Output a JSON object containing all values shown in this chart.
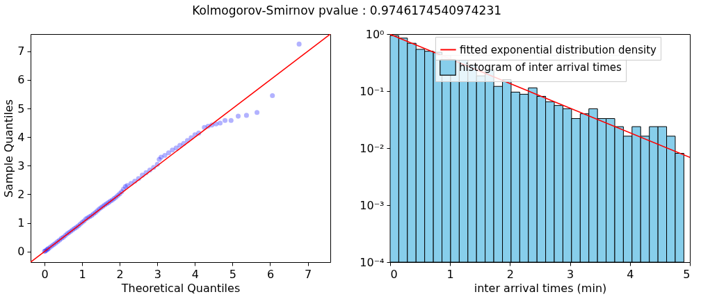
{
  "chart_data": [
    {
      "type": "scatter",
      "title": "Kolmogorov-Smirnov pvalue : 0.9746174540974231",
      "xlabel": "Theoretical Quantiles",
      "ylabel": "Sample Quantiles",
      "xlim": [
        -0.37,
        7.6
      ],
      "ylim": [
        -0.37,
        7.6
      ],
      "xticks": [
        0,
        1,
        2,
        3,
        4,
        5,
        6,
        7
      ],
      "yticks": [
        0,
        1,
        2,
        3,
        4,
        5,
        6,
        7
      ],
      "grid": false,
      "legend": false,
      "marker": "circle",
      "series": [
        {
          "color": "#0000ff",
          "x": [
            0,
            0.02,
            0.05,
            0.08,
            0.1,
            0.15,
            0.2,
            0.25,
            0.3,
            0.35,
            0.4,
            0.45,
            0.5,
            0.55,
            0.6,
            0.65,
            0.7,
            0.75,
            0.8,
            0.85,
            0.9,
            0.95,
            1.0,
            1.05,
            1.1,
            1.15,
            1.2,
            1.25,
            1.3,
            1.35,
            1.4,
            1.45,
            1.5,
            1.55,
            1.6,
            1.65,
            1.7,
            1.75,
            1.8,
            1.85,
            1.9,
            1.95,
            2.0,
            2.05,
            2.1,
            2.15,
            2.2,
            2.3,
            2.4,
            2.5,
            2.6,
            2.7,
            2.8,
            2.9,
            3.0,
            3.05,
            3.1,
            3.2,
            3.3,
            3.4,
            3.5,
            3.6,
            3.7,
            3.8,
            3.9,
            4.0,
            4.1,
            4.25,
            4.35,
            4.45,
            4.56,
            4.67,
            4.8,
            4.96,
            5.15,
            5.37,
            5.65,
            6.06,
            6.77
          ],
          "values": [
            0.01,
            0.02,
            0.05,
            0.08,
            0.1,
            0.15,
            0.2,
            0.25,
            0.3,
            0.35,
            0.4,
            0.46,
            0.5,
            0.56,
            0.62,
            0.66,
            0.71,
            0.76,
            0.81,
            0.85,
            0.9,
            0.96,
            1.02,
            1.07,
            1.14,
            1.18,
            1.22,
            1.26,
            1.31,
            1.36,
            1.42,
            1.48,
            1.53,
            1.58,
            1.63,
            1.67,
            1.71,
            1.76,
            1.8,
            1.85,
            1.9,
            1.96,
            2.02,
            2.09,
            2.18,
            2.27,
            2.31,
            2.38,
            2.46,
            2.55,
            2.67,
            2.76,
            2.85,
            2.94,
            3.05,
            3.22,
            3.3,
            3.36,
            3.45,
            3.55,
            3.62,
            3.71,
            3.78,
            3.88,
            3.98,
            4.08,
            4.14,
            4.34,
            4.38,
            4.42,
            4.46,
            4.49,
            4.58,
            4.58,
            4.73,
            4.76,
            4.86,
            5.45,
            7.25
          ]
        },
        {
          "type": "line",
          "color": "#ff0000",
          "marker": "none",
          "x": [
            -0.37,
            7.6
          ],
          "values": [
            -0.37,
            7.6
          ]
        }
      ]
    },
    {
      "type": "histogram",
      "xlabel": "inter arrival times (min)",
      "xlim": [
        0,
        5
      ],
      "ylim": [
        0.0001,
        1
      ],
      "xticks": [
        0,
        1,
        2,
        3,
        4,
        5
      ],
      "yticks": [
        {
          "value": 0.0001,
          "label": "10⁻⁴"
        },
        {
          "value": 0.001,
          "label": "10⁻³"
        },
        {
          "value": 0.01,
          "label": "10⁻²"
        },
        {
          "value": 0.1,
          "label": "10⁻¹"
        },
        {
          "value": 1,
          "label": "10⁰"
        }
      ],
      "log": "y",
      "grid": false,
      "legend": "top right",
      "series": [
        {
          "type": "line",
          "name": "fitted exponential distribution density",
          "color": "#ff0000",
          "x": [
            0,
            5
          ],
          "values": [
            0.99,
            0.0069
          ]
        },
        {
          "name": "histogram of inter arrival times",
          "color": "#87ceeb",
          "bins": [
            0,
            0.144,
            0.288,
            0.432,
            0.576,
            0.721,
            0.865,
            1.009,
            1.153,
            1.297,
            1.441,
            1.585,
            1.729,
            1.874,
            2.018,
            2.162,
            2.306,
            2.45,
            2.594,
            2.738,
            2.882,
            3.026,
            3.171,
            3.315,
            3.459,
            3.603,
            3.747,
            3.891,
            4.035,
            4.179,
            4.324,
            4.468,
            4.612,
            4.756,
            4.9
          ],
          "values": [
            0.94,
            0.85,
            0.69,
            0.54,
            0.5,
            0.48,
            0.42,
            0.35,
            0.35,
            0.285,
            0.185,
            0.236,
            0.121,
            0.159,
            0.096,
            0.088,
            0.114,
            0.081,
            0.065,
            0.056,
            0.049,
            0.033,
            0.04,
            0.049,
            0.033,
            0.033,
            0.0238,
            0.0162,
            0.0238,
            0.0162,
            0.0238,
            0.0238,
            0.0162,
            0.0081
          ]
        }
      ]
    }
  ]
}
